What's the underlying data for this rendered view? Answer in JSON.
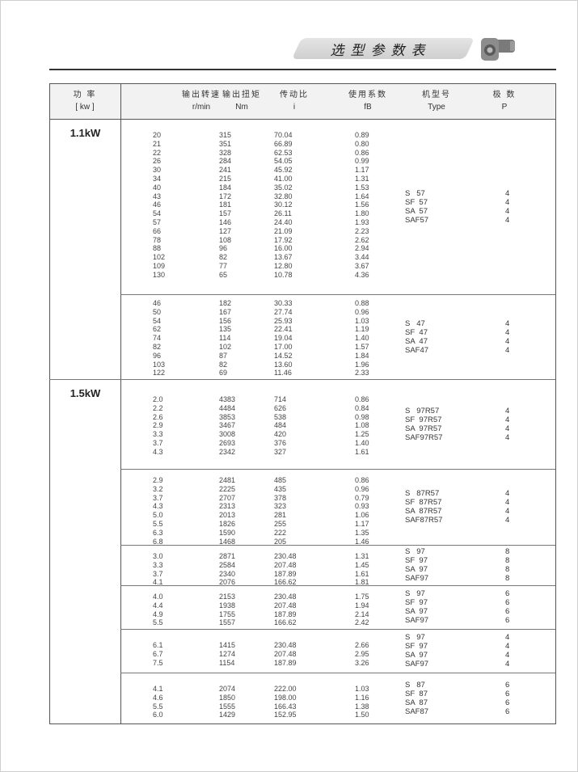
{
  "header": {
    "title": "选型参数表"
  },
  "columns": [
    {
      "cn": "功  率",
      "en": "[ kw ]"
    },
    {
      "cn": "输出转速",
      "en": "r/min"
    },
    {
      "cn": "输出扭矩",
      "en": "Nm"
    },
    {
      "cn": "传动比",
      "en": "i"
    },
    {
      "cn": "使用系数",
      "en": "fB"
    },
    {
      "cn": "机型号",
      "en": "Type"
    },
    {
      "cn": "极  数",
      "en": "P"
    }
  ],
  "sections": [
    {
      "power": "1.1kW",
      "groups": [
        {
          "rpm": [
            "20",
            "21",
            "22",
            "26",
            "30",
            "34",
            "40",
            "43",
            "46",
            "54",
            "57",
            "66",
            "78",
            "88",
            "102",
            "109",
            "130"
          ],
          "nm": [
            "315",
            "351",
            "328",
            "284",
            "241",
            "215",
            "184",
            "172",
            "181",
            "157",
            "146",
            "127",
            "108",
            "96",
            "82",
            "77",
            "65"
          ],
          "i": [
            "70.04",
            "66.89",
            "62.53",
            "54.05",
            "45.92",
            "41.00",
            "35.02",
            "32.80",
            "30.12",
            "26.11",
            "24.40",
            "21.09",
            "17.92",
            "16.00",
            "13.67",
            "12.80",
            "10.78"
          ],
          "fb": [
            "0.89",
            "0.80",
            "0.86",
            "0.99",
            "1.17",
            "1.31",
            "1.53",
            "1.64",
            "1.56",
            "1.80",
            "1.93",
            "2.23",
            "2.62",
            "2.94",
            "3.44",
            "3.67",
            "4.36"
          ],
          "types": [
            "S   57",
            "SF  57",
            "SA  57",
            "SAF57"
          ],
          "poles": [
            "4",
            "4",
            "4",
            "4"
          ]
        },
        {
          "rpm": [
            "46",
            "50",
            "54",
            "62",
            "74",
            "82",
            "96",
            "103",
            "122"
          ],
          "nm": [
            "182",
            "167",
            "156",
            "135",
            "114",
            "102",
            "87",
            "82",
            "69"
          ],
          "i": [
            "30.33",
            "27.74",
            "25.93",
            "22.41",
            "19.04",
            "17.00",
            "14.52",
            "13.60",
            "11.46"
          ],
          "fb": [
            "0.88",
            "0.96",
            "1.03",
            "1.19",
            "1.40",
            "1.57",
            "1.84",
            "1.96",
            "2.33"
          ],
          "types": [
            "S   47",
            "SF  47",
            "SA  47",
            "SAF47"
          ],
          "poles": [
            "4",
            "4",
            "4",
            "4"
          ]
        }
      ]
    },
    {
      "power": "1.5kW",
      "groups": [
        {
          "rpm": [
            "2.0",
            "2.2",
            "2.6",
            "2.9",
            "3.3",
            "3.7",
            "4.3"
          ],
          "nm": [
            "4383",
            "4484",
            "3853",
            "3467",
            "3008",
            "2693",
            "2342"
          ],
          "i": [
            "714",
            "626",
            "538",
            "484",
            "420",
            "376",
            "327"
          ],
          "fb": [
            "0.86",
            "0.84",
            "0.98",
            "1.08",
            "1.25",
            "1.40",
            "1.61"
          ],
          "types": [
            "S   97R57",
            "SF  97R57",
            "SA  97R57",
            "SAF97R57"
          ],
          "poles": [
            "4",
            "4",
            "4",
            "4"
          ]
        },
        {
          "rpm": [
            "2.9",
            "3.2",
            "3.7",
            "4.3",
            "5.0",
            "5.5",
            "6.3",
            "6.8"
          ],
          "nm": [
            "2481",
            "2225",
            "2707",
            "2313",
            "2013",
            "1826",
            "1590",
            "1468"
          ],
          "i": [
            "485",
            "435",
            "378",
            "323",
            "281",
            "255",
            "222",
            "205"
          ],
          "fb": [
            "0.86",
            "0.96",
            "0.79",
            "0.93",
            "1.06",
            "1.17",
            "1.35",
            "1.46"
          ],
          "types": [
            "S   87R57",
            "SF  87R57",
            "SA  87R57",
            "SAF87R57"
          ],
          "poles": [
            "4",
            "4",
            "4",
            "4"
          ]
        },
        {
          "rpm": [
            "3.0",
            "3.3",
            "3.7",
            "4.1"
          ],
          "nm": [
            "2871",
            "2584",
            "2340",
            "2076"
          ],
          "i": [
            "230.48",
            "207.48",
            "187.89",
            "166.62"
          ],
          "fb": [
            "1.31",
            "1.45",
            "1.61",
            "1.81"
          ],
          "types": [
            "S   97",
            "SF  97",
            "SA  97",
            "SAF97"
          ],
          "poles": [
            "8",
            "8",
            "8",
            "8"
          ]
        },
        {
          "rpm": [
            "4.0",
            "4.4",
            "4.9",
            "5.5"
          ],
          "nm": [
            "2153",
            "1938",
            "1755",
            "1557"
          ],
          "i": [
            "230.48",
            "207.48",
            "187.89",
            "166.62"
          ],
          "fb": [
            "1.75",
            "1.94",
            "2.14",
            "2.42"
          ],
          "types": [
            "S   97",
            "SF  97",
            "SA  97",
            "SAF97"
          ],
          "poles": [
            "6",
            "6",
            "6",
            "6"
          ]
        },
        {
          "rpm": [
            "6.1",
            "6.7",
            "7.5"
          ],
          "nm": [
            "1415",
            "1274",
            "1154"
          ],
          "i": [
            "230.48",
            "207.48",
            "187.89"
          ],
          "fb": [
            "2.66",
            "2.95",
            "3.26"
          ],
          "types": [
            "S   97",
            "SF  97",
            "SA  97",
            "SAF97"
          ],
          "poles": [
            "4",
            "4",
            "4",
            "4"
          ]
        },
        {
          "rpm": [
            "4.1",
            "4.6",
            "5.5",
            "6.0"
          ],
          "nm": [
            "2074",
            "1850",
            "1555",
            "1429"
          ],
          "i": [
            "222.00",
            "198.00",
            "166.43",
            "152.95"
          ],
          "fb": [
            "1.03",
            "1.16",
            "1.38",
            "1.50"
          ],
          "types": [
            "S   87",
            "SF  87",
            "SA  87",
            "SAF87"
          ],
          "poles": [
            "6",
            "6",
            "6",
            "6"
          ]
        }
      ]
    }
  ]
}
